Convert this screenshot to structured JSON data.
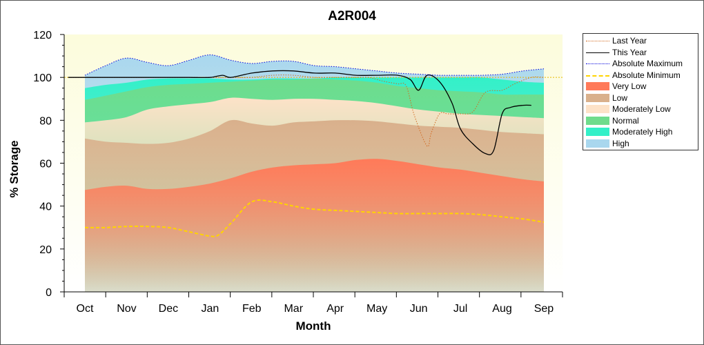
{
  "chart_data": {
    "type": "area",
    "title": "A2R004",
    "xlabel": "Month",
    "ylabel": "% Storage",
    "ylim": [
      0,
      120
    ],
    "yticks": [
      0,
      20,
      40,
      60,
      80,
      100,
      120
    ],
    "categories": [
      "Oct",
      "Nov",
      "Dec",
      "Jan",
      "Feb",
      "Mar",
      "Apr",
      "May",
      "Jun",
      "Jul",
      "Aug",
      "Sep"
    ],
    "reference_line": 100,
    "legend_position": "right",
    "band_x": [
      0,
      0.5,
      1,
      1.5,
      2,
      2.5,
      3,
      3.5,
      4,
      4.5,
      5,
      5.5,
      6,
      6.5,
      7,
      7.5,
      8,
      8.5,
      9,
      9.5,
      10,
      10.5,
      11
    ],
    "bands": [
      {
        "name": "Very Low",
        "color": "#ff7a59",
        "values": [
          47.5,
          49,
          49.5,
          48,
          48,
          49,
          50.5,
          53,
          56,
          58,
          59,
          59.5,
          60,
          61.5,
          62,
          61,
          59.5,
          58,
          57,
          55.5,
          54,
          52.5,
          51.5
        ]
      },
      {
        "name": "Low",
        "color": "#d9b08c",
        "values": [
          71.5,
          70,
          69.5,
          69,
          69.5,
          71.5,
          75,
          80,
          78.5,
          77.5,
          79,
          79.5,
          80,
          80,
          79.5,
          78.5,
          77.5,
          77,
          76.5,
          75.5,
          74.5,
          74,
          73.5
        ]
      },
      {
        "name": "Moderately Low",
        "color": "#fde2c8",
        "values": [
          79,
          80,
          81.5,
          85,
          86.5,
          87.5,
          88.5,
          90.5,
          90,
          89.5,
          90,
          90,
          89.5,
          89,
          88,
          86.5,
          85,
          84,
          83,
          82.5,
          82,
          81.5,
          81
        ]
      },
      {
        "name": "Normal",
        "color": "#6fdc8c",
        "values": [
          89.5,
          91.5,
          93.5,
          95.5,
          96.5,
          97,
          97.5,
          98,
          98.5,
          99,
          99,
          99.5,
          99,
          98.5,
          97.5,
          96,
          95,
          94,
          93.5,
          93,
          92,
          92,
          92
        ]
      },
      {
        "name": "Moderately High",
        "color": "#33f0c8",
        "values": [
          95,
          96.5,
          97.5,
          99,
          99.5,
          99.5,
          99.5,
          99,
          99,
          99.5,
          99.5,
          99.5,
          100,
          100,
          100,
          100,
          100,
          100,
          100,
          100,
          99,
          98,
          97.5
        ]
      },
      {
        "name": "High",
        "color": "#a9d7ee",
        "values": [
          101,
          105.5,
          109,
          107,
          105.5,
          108,
          110.5,
          108,
          106.5,
          107.5,
          107.5,
          105.5,
          105,
          104,
          103,
          102,
          101.5,
          101,
          101,
          101,
          101.5,
          103,
          104
        ]
      }
    ],
    "series": [
      {
        "name": "Last Year",
        "color": "#d2691e",
        "style": "dotted",
        "x": [
          -0.4,
          0,
          0.5,
          1,
          1.5,
          2,
          2.5,
          3,
          3.5,
          4,
          4.5,
          5,
          5.5,
          6,
          6.5,
          6.8,
          7,
          7.2,
          7.5,
          7.7,
          7.9,
          8.2,
          8.3,
          8.5,
          8.7,
          9,
          9.3,
          9.6,
          10,
          10.3,
          10.7,
          11
        ],
        "y": [
          100,
          100,
          100,
          100,
          100,
          100,
          100,
          100,
          100,
          100,
          101,
          101,
          100,
          100,
          100,
          100,
          99,
          98,
          97,
          96,
          82,
          68,
          74,
          83,
          83,
          83,
          84,
          93,
          94,
          97,
          100,
          100
        ]
      },
      {
        "name": "This Year",
        "color": "#000000",
        "style": "solid",
        "x": [
          -0.4,
          0,
          0.5,
          1,
          1.5,
          2,
          2.5,
          3,
          3.3,
          3.5,
          4,
          4.5,
          5,
          5.5,
          6,
          6.5,
          7,
          7.5,
          7.8,
          8,
          8.2,
          8.5,
          8.8,
          9,
          9.3,
          9.6,
          9.8,
          10,
          10.2,
          10.5,
          10.7
        ],
        "y": [
          100,
          100,
          100,
          100,
          100,
          100,
          100,
          100,
          101,
          100,
          102,
          103,
          103,
          102,
          102,
          101,
          101,
          101,
          99,
          94,
          101,
          98,
          88,
          76,
          69,
          64.5,
          66,
          83,
          86,
          87,
          87
        ]
      },
      {
        "name": "Absolute Maximum",
        "color": "#0000dd",
        "style": "dotted",
        "x": [
          0,
          0.5,
          1,
          1.5,
          2,
          2.5,
          3,
          3.5,
          4,
          4.5,
          5,
          5.5,
          6,
          6.5,
          7,
          7.5,
          8,
          8.5,
          9,
          9.5,
          10,
          10.5,
          11
        ],
        "y": [
          101,
          105.5,
          109,
          107,
          105.5,
          108,
          110.5,
          108,
          106.5,
          107.5,
          107.5,
          105.5,
          105,
          104,
          103,
          102,
          101.5,
          101,
          101,
          101,
          101.5,
          103,
          104
        ]
      },
      {
        "name": "Absolute Minimum",
        "color": "#ffd400",
        "style": "dashed",
        "x": [
          0,
          0.5,
          1,
          1.5,
          2,
          2.5,
          3,
          3.2,
          3.5,
          4,
          4.5,
          5,
          5.5,
          6,
          6.5,
          7,
          7.5,
          8,
          8.5,
          9,
          9.5,
          10,
          10.5,
          11
        ],
        "y": [
          30,
          30,
          30.5,
          30.5,
          30,
          28,
          26,
          26.5,
          32,
          42,
          42,
          40,
          38.5,
          38,
          37.5,
          37,
          36.5,
          36.5,
          36.5,
          36.5,
          36,
          35,
          34,
          32.5
        ]
      }
    ]
  },
  "legend": [
    {
      "label": "Last Year",
      "kind": "dots",
      "color": "#d2691e"
    },
    {
      "label": "This Year",
      "kind": "line",
      "color": "#000000"
    },
    {
      "label": "Absolute Maximum",
      "kind": "dots",
      "color": "#0000dd"
    },
    {
      "label": "Absolute Minimum",
      "kind": "dash",
      "color": "#ffd400"
    },
    {
      "label": "Very Low",
      "kind": "box",
      "color": "#ff7a59"
    },
    {
      "label": "Low",
      "kind": "box",
      "color": "#d9b08c"
    },
    {
      "label": "Moderately Low",
      "kind": "box",
      "color": "#fde2c8"
    },
    {
      "label": "Normal",
      "kind": "box",
      "color": "#6fdc8c"
    },
    {
      "label": "Moderately High",
      "kind": "box",
      "color": "#33f0c8"
    },
    {
      "label": "High",
      "kind": "box",
      "color": "#a9d7ee"
    }
  ]
}
